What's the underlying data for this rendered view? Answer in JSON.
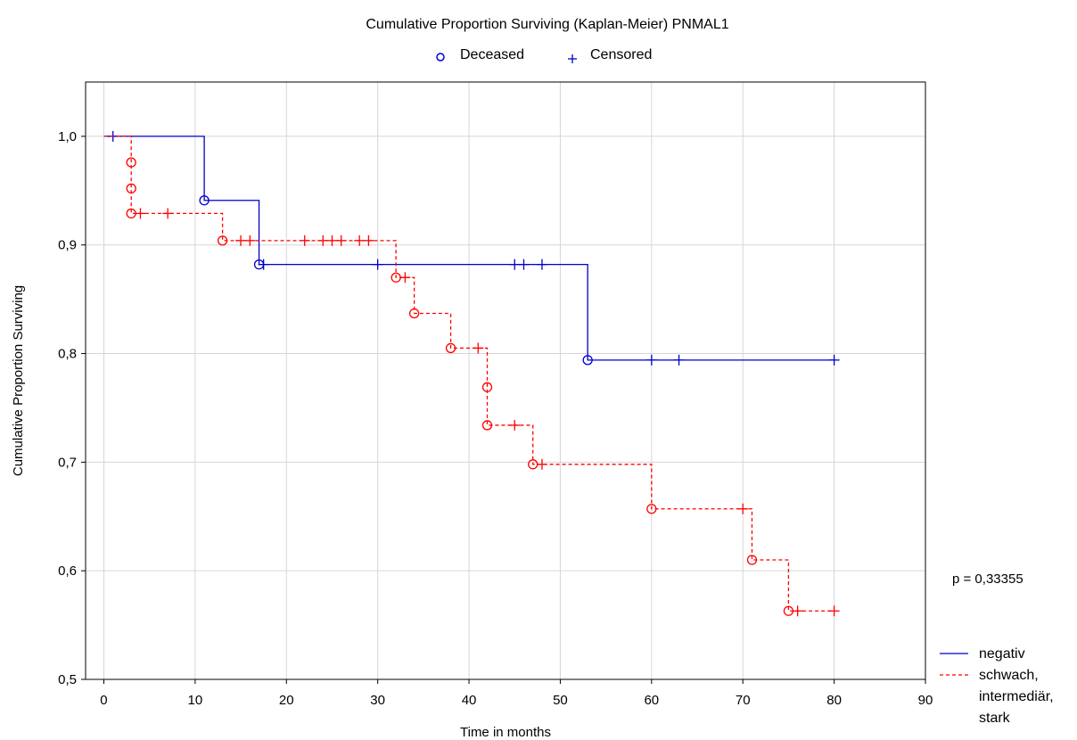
{
  "chart_data": {
    "type": "line",
    "subtype": "kaplan-meier",
    "title": "Cumulative Proportion Surviving (Kaplan-Meier) PNMAL1",
    "xlabel": "Time in months",
    "ylabel": "Cumulative Proportion Surviving",
    "xlim": [
      -2,
      90
    ],
    "ylim": [
      0.5,
      1.05
    ],
    "x_ticks": [
      0,
      10,
      20,
      30,
      40,
      50,
      60,
      70,
      80,
      90
    ],
    "x_tick_labels": [
      "0",
      "10",
      "20",
      "30",
      "40",
      "50",
      "60",
      "70",
      "80",
      "90"
    ],
    "y_ticks": [
      0.5,
      0.6,
      0.7,
      0.8,
      0.9,
      1.0
    ],
    "y_tick_labels": [
      "0,5",
      "0,6",
      "0,7",
      "0,8",
      "0,9",
      "1,0"
    ],
    "grid": true,
    "marker_legend": {
      "deceased_symbol": "o",
      "deceased_label": "Deceased",
      "censored_symbol": "+",
      "censored_label": "Censored",
      "placement": "top-center"
    },
    "annotation": "p = 0,33355",
    "series": [
      {
        "name": "negativ",
        "color": "#0000cc",
        "line_style": "solid",
        "steps": [
          [
            0,
            1.0
          ],
          [
            11,
            0.941
          ],
          [
            17,
            0.882
          ],
          [
            53,
            0.794
          ],
          [
            80,
            0.794
          ]
        ],
        "deceased": [
          [
            11,
            0.941
          ],
          [
            17,
            0.882
          ],
          [
            53,
            0.794
          ]
        ],
        "censored": [
          [
            1,
            1.0
          ],
          [
            17.5,
            0.882
          ],
          [
            30,
            0.882
          ],
          [
            45,
            0.882
          ],
          [
            46,
            0.882
          ],
          [
            48,
            0.882
          ],
          [
            60,
            0.794
          ],
          [
            63,
            0.794
          ],
          [
            80,
            0.794
          ]
        ]
      },
      {
        "name": "schwach, intermediär, stark",
        "color": "#ff0000",
        "line_style": "dashed",
        "steps": [
          [
            0,
            1.0
          ],
          [
            3,
            0.976
          ],
          [
            3,
            0.952
          ],
          [
            3,
            0.929
          ],
          [
            13,
            0.904
          ],
          [
            32,
            0.87
          ],
          [
            34,
            0.837
          ],
          [
            38,
            0.805
          ],
          [
            42,
            0.769
          ],
          [
            42,
            0.734
          ],
          [
            47,
            0.698
          ],
          [
            60,
            0.657
          ],
          [
            71,
            0.61
          ],
          [
            75,
            0.563
          ],
          [
            80,
            0.563
          ]
        ],
        "deceased": [
          [
            3,
            0.976
          ],
          [
            3,
            0.952
          ],
          [
            3,
            0.929
          ],
          [
            13,
            0.904
          ],
          [
            32,
            0.87
          ],
          [
            34,
            0.837
          ],
          [
            38,
            0.805
          ],
          [
            42,
            0.769
          ],
          [
            42,
            0.734
          ],
          [
            47,
            0.698
          ],
          [
            60,
            0.657
          ],
          [
            71,
            0.61
          ],
          [
            75,
            0.563
          ]
        ],
        "censored": [
          [
            4,
            0.929
          ],
          [
            7,
            0.929
          ],
          [
            15,
            0.904
          ],
          [
            16,
            0.904
          ],
          [
            22,
            0.904
          ],
          [
            24,
            0.904
          ],
          [
            25,
            0.904
          ],
          [
            26,
            0.904
          ],
          [
            28,
            0.904
          ],
          [
            29,
            0.904
          ],
          [
            33,
            0.87
          ],
          [
            41,
            0.805
          ],
          [
            45,
            0.734
          ],
          [
            48,
            0.698
          ],
          [
            70,
            0.657
          ],
          [
            76,
            0.563
          ],
          [
            80,
            0.563
          ]
        ]
      }
    ],
    "series_legend": {
      "placement": "bottom-right",
      "labels": [
        [
          "negativ"
        ],
        [
          "schwach,",
          "intermediär,",
          "stark"
        ]
      ]
    }
  }
}
